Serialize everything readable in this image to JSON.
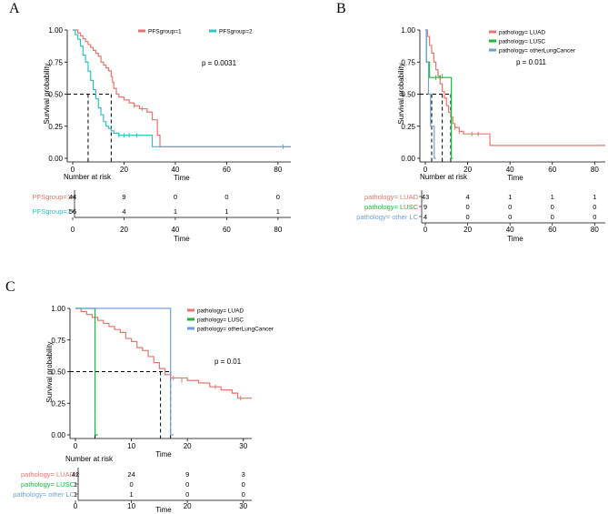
{
  "chart_data": [
    {
      "id": "A",
      "type": "line",
      "panel_label": "A",
      "xlabel": "Time",
      "ylabel": "Survival probability",
      "xlim": [
        0,
        85
      ],
      "ylim": [
        0,
        1
      ],
      "xticks": [
        0,
        20,
        40,
        60,
        80
      ],
      "yticks": [
        0,
        0.25,
        0.5,
        0.75,
        1
      ],
      "xtick_labels": [
        "0",
        "20",
        "40",
        "60",
        "80"
      ],
      "ytick_labels": [
        "0.00",
        "0.25",
        "0.50",
        "0.75",
        "1.00"
      ],
      "pvalue": "p = 0.0031",
      "median_line": 0.5,
      "medians": [
        15,
        6
      ],
      "series": [
        {
          "name": "PFSgroup=1",
          "color": "#E8756B",
          "steps": [
            [
              0,
              1
            ],
            [
              2,
              0.977
            ],
            [
              3,
              0.955
            ],
            [
              4,
              0.932
            ],
            [
              5,
              0.909
            ],
            [
              6,
              0.886
            ],
            [
              7,
              0.864
            ],
            [
              8,
              0.841
            ],
            [
              9,
              0.818
            ],
            [
              10,
              0.795
            ],
            [
              11,
              0.75
            ],
            [
              12,
              0.727
            ],
            [
              13,
              0.705
            ],
            [
              14,
              0.682
            ],
            [
              15,
              0.636
            ],
            [
              15.5,
              0.591
            ],
            [
              16,
              0.545
            ],
            [
              17,
              0.5
            ],
            [
              18,
              0.477
            ],
            [
              20,
              0.455
            ],
            [
              22,
              0.432
            ],
            [
              24,
              0.409
            ],
            [
              26,
              0.386
            ],
            [
              29,
              0.36
            ],
            [
              31,
              0.3
            ],
            [
              33,
              0.18
            ],
            [
              34,
              0.09
            ],
            [
              85,
              0.09
            ]
          ],
          "censors": [
            [
              24,
              0.409
            ],
            [
              27,
              0.386
            ]
          ]
        },
        {
          "name": "PFSgroup=2",
          "color": "#2EC4C4",
          "steps": [
            [
              0,
              1
            ],
            [
              1,
              0.964
            ],
            [
              2,
              0.929
            ],
            [
              3,
              0.875
            ],
            [
              4,
              0.804
            ],
            [
              5,
              0.75
            ],
            [
              6,
              0.679
            ],
            [
              7,
              0.607
            ],
            [
              8,
              0.536
            ],
            [
              9,
              0.464
            ],
            [
              10,
              0.393
            ],
            [
              11,
              0.339
            ],
            [
              12,
              0.286
            ],
            [
              13,
              0.25
            ],
            [
              14,
              0.232
            ],
            [
              15,
              0.214
            ],
            [
              16,
              0.196
            ],
            [
              18,
              0.179
            ],
            [
              29,
              0.18
            ],
            [
              31,
              0.09
            ],
            [
              85,
              0.09
            ]
          ],
          "censors": [
            [
              18,
              0.179
            ],
            [
              20,
              0.179
            ],
            [
              22,
              0.179
            ],
            [
              25,
              0.179
            ],
            [
              82,
              0.09
            ]
          ]
        }
      ],
      "risk_table": {
        "title": "Number at risk",
        "xlabel": "Time",
        "times": [
          0,
          20,
          40,
          60,
          80
        ],
        "time_labels": [
          "0",
          "20",
          "40",
          "60",
          "80"
        ],
        "rows": [
          {
            "label": "PFSgroup=1",
            "color": "#E8756B",
            "values": [
              "44",
              "9",
              "0",
              "0",
              "0"
            ]
          },
          {
            "label": "PFSgroup=2",
            "color": "#2EC4C4",
            "values": [
              "56",
              "4",
              "1",
              "1",
              "1"
            ]
          }
        ]
      }
    },
    {
      "id": "B",
      "type": "line",
      "panel_label": "B",
      "xlabel": "Time",
      "ylabel": "Survival probability",
      "xlim": [
        0,
        85
      ],
      "ylim": [
        0,
        1
      ],
      "xticks": [
        0,
        20,
        40,
        60,
        80
      ],
      "yticks": [
        0,
        0.25,
        0.5,
        0.75,
        1
      ],
      "xtick_labels": [
        "0",
        "20",
        "40",
        "60",
        "80"
      ],
      "ytick_labels": [
        "0.00",
        "0.25",
        "0.50",
        "0.75",
        "1.00"
      ],
      "pvalue": "p = 0.011",
      "median_line": 0.5,
      "medians": [
        3,
        8,
        12
      ],
      "series": [
        {
          "name": "pathology= LUAD",
          "color": "#E8756B",
          "steps": [
            [
              0,
              1
            ],
            [
              1,
              0.95
            ],
            [
              2,
              0.88
            ],
            [
              3,
              0.82
            ],
            [
              4,
              0.75
            ],
            [
              5,
              0.69
            ],
            [
              6,
              0.64
            ],
            [
              7,
              0.58
            ],
            [
              8,
              0.52
            ],
            [
              9,
              0.47
            ],
            [
              10,
              0.41
            ],
            [
              11,
              0.36
            ],
            [
              12,
              0.32
            ],
            [
              13,
              0.27
            ],
            [
              14,
              0.24
            ],
            [
              16,
              0.21
            ],
            [
              18,
              0.19
            ],
            [
              30,
              0.19
            ],
            [
              30.5,
              0.1
            ],
            [
              85,
              0.1
            ]
          ],
          "censors": [
            [
              8,
              0.64
            ],
            [
              14,
              0.24
            ],
            [
              16,
              0.21
            ],
            [
              22,
              0.19
            ],
            [
              25,
              0.19
            ]
          ]
        },
        {
          "name": "pathology= LUSC",
          "color": "#1DB83A",
          "steps": [
            [
              0,
              1
            ],
            [
              0.5,
              0.75
            ],
            [
              2,
              0.63
            ],
            [
              12,
              0.63
            ],
            [
              12.3,
              0
            ],
            [
              13,
              0
            ]
          ],
          "censors": [
            [
              5,
              0.63
            ],
            [
              7,
              0.63
            ]
          ]
        },
        {
          "name": "pathology= otherLungCancer",
          "color": "#6F9FE0",
          "steps": [
            [
              0,
              1
            ],
            [
              0.5,
              0.75
            ],
            [
              1.5,
              0.5
            ],
            [
              2.5,
              0.25
            ],
            [
              4,
              0.25
            ],
            [
              4.2,
              0
            ],
            [
              5,
              0
            ]
          ],
          "censors": []
        }
      ],
      "risk_table": {
        "title": "Number at risk",
        "xlabel": "Time",
        "times": [
          0,
          20,
          40,
          60,
          80
        ],
        "time_labels": [
          "0",
          "20",
          "40",
          "60",
          "80"
        ],
        "rows": [
          {
            "label": "pathology= LUAD",
            "color": "#E8756B",
            "values": [
              "43",
              "4",
              "1",
              "1",
              "1"
            ]
          },
          {
            "label": "pathology= LUSC",
            "color": "#1DB83A",
            "values": [
              "9",
              "0",
              "0",
              "0",
              "0"
            ]
          },
          {
            "label": "pathology= other LC",
            "color": "#6F9FE0",
            "values": [
              "4",
              "0",
              "0",
              "0",
              "0"
            ]
          }
        ]
      }
    },
    {
      "id": "C",
      "type": "line",
      "panel_label": "C",
      "xlabel": "Time",
      "ylabel": "Survival probability",
      "xlim": [
        0,
        31.5
      ],
      "ylim": [
        0,
        1
      ],
      "xticks": [
        0,
        10,
        20,
        30
      ],
      "yticks": [
        0,
        0.25,
        0.5,
        0.75,
        1
      ],
      "xtick_labels": [
        "0",
        "10",
        "20",
        "30"
      ],
      "ytick_labels": [
        "0.00",
        "0.25",
        "0.50",
        "0.75",
        "1.00"
      ],
      "pvalue": "p = 0.01",
      "median_line": 0.5,
      "medians": [
        3.5,
        15.2,
        17
      ],
      "series": [
        {
          "name": "pathology= LUAD",
          "color": "#E8756B",
          "steps": [
            [
              0,
              1
            ],
            [
              1,
              0.976
            ],
            [
              2,
              0.952
            ],
            [
              3,
              0.929
            ],
            [
              4,
              0.905
            ],
            [
              5,
              0.881
            ],
            [
              6,
              0.857
            ],
            [
              7,
              0.833
            ],
            [
              8,
              0.81
            ],
            [
              9,
              0.762
            ],
            [
              10,
              0.738
            ],
            [
              11,
              0.69
            ],
            [
              12,
              0.667
            ],
            [
              13,
              0.619
            ],
            [
              14,
              0.571
            ],
            [
              15,
              0.524
            ],
            [
              16,
              0.476
            ],
            [
              17,
              0.45
            ],
            [
              20,
              0.43
            ],
            [
              22,
              0.41
            ],
            [
              24,
              0.38
            ],
            [
              26,
              0.355
            ],
            [
              28,
              0.33
            ],
            [
              29,
              0.29
            ],
            [
              31.5,
              0.29
            ]
          ],
          "censors": [
            [
              17.5,
              0.45
            ],
            [
              19,
              0.43
            ],
            [
              25,
              0.38
            ],
            [
              29.5,
              0.29
            ]
          ]
        },
        {
          "name": "pathology= LUSC",
          "color": "#1DB83A",
          "steps": [
            [
              0,
              1
            ],
            [
              3.5,
              1
            ],
            [
              3.5,
              0
            ],
            [
              4,
              0
            ]
          ],
          "censors": []
        },
        {
          "name": "pathology= otherLungCancer",
          "color": "#6F9FE0",
          "steps": [
            [
              0,
              1
            ],
            [
              17,
              1
            ],
            [
              17,
              0
            ],
            [
              17.5,
              0
            ]
          ],
          "censors": []
        }
      ],
      "risk_table": {
        "title": "Number at risk",
        "xlabel": "Time",
        "times": [
          0,
          10,
          20,
          30
        ],
        "time_labels": [
          "0",
          "10",
          "20",
          "30"
        ],
        "rows": [
          {
            "label": "pathology= LUAD",
            "color": "#E8756B",
            "values": [
              "42",
              "24",
              "9",
              "3"
            ]
          },
          {
            "label": "pathology= LUSC",
            "color": "#1DB83A",
            "values": [
              "1",
              "0",
              "0",
              "0"
            ]
          },
          {
            "label": "pathology= other LC",
            "color": "#6F9FE0",
            "values": [
              "1",
              "1",
              "0",
              "0"
            ]
          }
        ]
      }
    }
  ]
}
